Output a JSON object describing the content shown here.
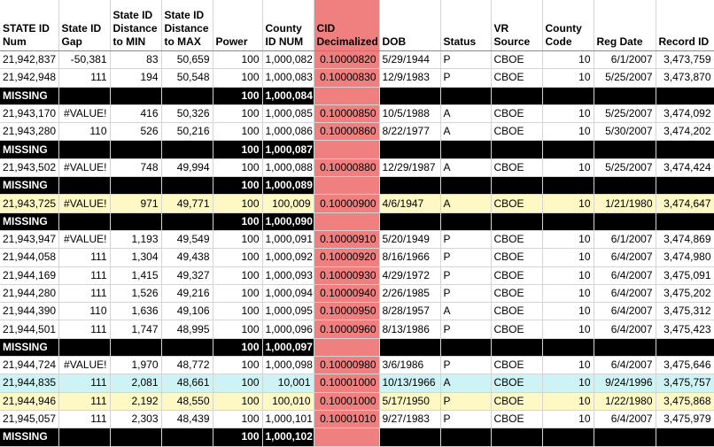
{
  "colors": {
    "cid_highlight": "#f08080",
    "missing_row": "#000000",
    "yellow_row": "#fdf8c4",
    "cyan_row": "#cdf3f6",
    "orange_border": "#e58d3a"
  },
  "headers": [
    "STATE ID Num",
    "State ID Gap",
    "State ID Distance to MIN",
    "State ID Distance to MAX",
    "Power",
    "County ID NUM",
    "CID Decimalized",
    "DOB",
    "Status",
    "VR Source",
    "County Code",
    "Reg Date",
    "Record ID"
  ],
  "rows": [
    {
      "kind": "normal",
      "cells": [
        "21,942,837",
        "-50,381",
        "83",
        "50,659",
        "100",
        "1,000,082",
        "0.10000820",
        "5/29/1944",
        "P",
        "CBOE",
        "10",
        "6/1/2007",
        "3,473,759"
      ]
    },
    {
      "kind": "normal",
      "cells": [
        "21,942,948",
        "111",
        "194",
        "50,548",
        "100",
        "1,000,083",
        "0.10000830",
        "12/9/1983",
        "P",
        "CBOE",
        "10",
        "5/25/2007",
        "3,473,870"
      ]
    },
    {
      "kind": "missing",
      "label": "MISSING",
      "power": "100",
      "county": "1,000,084"
    },
    {
      "kind": "normal",
      "cells": [
        "21,943,170",
        "#VALUE!",
        "416",
        "50,326",
        "100",
        "1,000,085",
        "0.10000850",
        "10/5/1988",
        "A",
        "CBOE",
        "10",
        "5/25/2007",
        "3,474,092"
      ]
    },
    {
      "kind": "normal",
      "obottom": true,
      "cells": [
        "21,943,280",
        "110",
        "526",
        "50,216",
        "100",
        "1,000,086",
        "0.10000860",
        "8/22/1977",
        "A",
        "CBOE",
        "10",
        "5/30/2007",
        "3,474,202"
      ]
    },
    {
      "kind": "missing",
      "label": "MISSING",
      "power": "100",
      "county": "1,000,087"
    },
    {
      "kind": "normal",
      "cells": [
        "21,943,502",
        "#VALUE!",
        "748",
        "49,994",
        "100",
        "1,000,088",
        "0.10000880",
        "12/29/1987",
        "A",
        "CBOE",
        "10",
        "5/25/2007",
        "3,474,424"
      ]
    },
    {
      "kind": "missing",
      "label": "MISSING",
      "power": "100",
      "county": "1,000,089"
    },
    {
      "kind": "yellow",
      "cells": [
        "21,943,725",
        "#VALUE!",
        "971",
        "49,771",
        "100",
        "100,009",
        "0.10000900",
        "4/6/1947",
        "A",
        "CBOE",
        "10",
        "1/21/1980",
        "3,474,647"
      ]
    },
    {
      "kind": "missing",
      "label": "MISSING",
      "power": "100",
      "county": "1,000,090"
    },
    {
      "kind": "normal",
      "cells": [
        "21,943,947",
        "#VALUE!",
        "1,193",
        "49,549",
        "100",
        "1,000,091",
        "0.10000910",
        "5/20/1949",
        "P",
        "CBOE",
        "10",
        "6/1/2007",
        "3,474,869"
      ]
    },
    {
      "kind": "normal",
      "cells": [
        "21,944,058",
        "111",
        "1,304",
        "49,438",
        "100",
        "1,000,092",
        "0.10000920",
        "8/16/1966",
        "P",
        "CBOE",
        "10",
        "6/4/2007",
        "3,474,980"
      ]
    },
    {
      "kind": "normal",
      "cells": [
        "21,944,169",
        "111",
        "1,415",
        "49,327",
        "100",
        "1,000,093",
        "0.10000930",
        "4/29/1972",
        "P",
        "CBOE",
        "10",
        "6/4/2007",
        "3,475,091"
      ]
    },
    {
      "kind": "normal",
      "cells": [
        "21,944,280",
        "111",
        "1,526",
        "49,216",
        "100",
        "1,000,094",
        "0.10000940",
        "2/26/1985",
        "P",
        "CBOE",
        "10",
        "6/4/2007",
        "3,475,202"
      ]
    },
    {
      "kind": "normal",
      "obottom": true,
      "cells": [
        "21,944,390",
        "110",
        "1,636",
        "49,106",
        "100",
        "1,000,095",
        "0.10000950",
        "8/28/1957",
        "A",
        "CBOE",
        "10",
        "6/4/2007",
        "3,475,312"
      ]
    },
    {
      "kind": "normal",
      "cells": [
        "21,944,501",
        "111",
        "1,747",
        "48,995",
        "100",
        "1,000,096",
        "0.10000960",
        "8/13/1986",
        "P",
        "CBOE",
        "10",
        "6/4/2007",
        "3,475,423"
      ]
    },
    {
      "kind": "missing",
      "label": "MISSING",
      "power": "100",
      "county": "1,000,097"
    },
    {
      "kind": "normal",
      "cells": [
        "21,944,724",
        "#VALUE!",
        "1,970",
        "48,772",
        "100",
        "1,000,098",
        "0.10000980",
        "3/6/1986",
        "P",
        "CBOE",
        "10",
        "6/4/2007",
        "3,475,646"
      ]
    },
    {
      "kind": "cyan",
      "cells": [
        "21,944,835",
        "111",
        "2,081",
        "48,661",
        "100",
        "10,001",
        "0.10001000",
        "10/13/1966",
        "A",
        "CBOE",
        "10",
        "9/24/1996",
        "3,475,757"
      ]
    },
    {
      "kind": "yellow",
      "cells": [
        "21,944,946",
        "111",
        "2,192",
        "48,550",
        "100",
        "100,010",
        "0.10001000",
        "5/17/1950",
        "P",
        "CBOE",
        "10",
        "1/22/1980",
        "3,475,868"
      ]
    },
    {
      "kind": "normal",
      "cells": [
        "21,945,057",
        "111",
        "2,303",
        "48,439",
        "100",
        "1,000,101",
        "0.10001010",
        "9/27/1983",
        "P",
        "CBOE",
        "10",
        "6/4/2007",
        "3,475,979"
      ]
    },
    {
      "kind": "missing",
      "label": "MISSING",
      "power": "100",
      "county": "1,000,102"
    }
  ]
}
